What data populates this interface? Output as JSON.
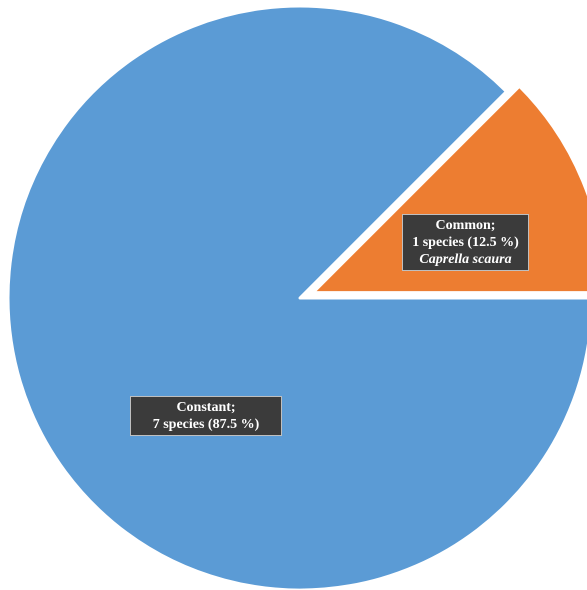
{
  "chart_data": {
    "type": "pie",
    "title": "",
    "start_angle_deg": 0,
    "direction": "counterclockwise",
    "slices": [
      {
        "key": "common",
        "value": 12.5,
        "color": "#ED7D31",
        "exploded": true,
        "label_lines": [
          "Common;",
          "1 species (12.5 %)",
          "Caprella scaura"
        ]
      },
      {
        "key": "constant",
        "value": 87.5,
        "color": "#5B9BD5",
        "exploded": false,
        "label_lines": [
          "Constant;",
          "7 species (87.5 %)"
        ]
      }
    ]
  }
}
